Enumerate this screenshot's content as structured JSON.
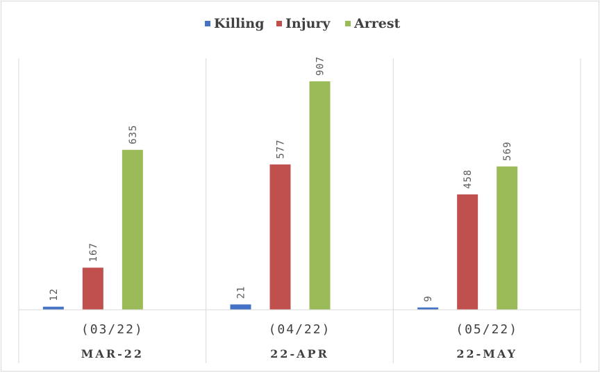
{
  "chart_data": {
    "type": "bar",
    "categories": [
      {
        "top": "(03/22)",
        "bottom": "MAR-22"
      },
      {
        "top": "(04/22)",
        "bottom": "22-APR"
      },
      {
        "top": "(05/22)",
        "bottom": "22-MAY"
      }
    ],
    "series": [
      {
        "name": "Killing",
        "color": "#4472c4",
        "values": [
          12,
          21,
          9
        ]
      },
      {
        "name": "Injury",
        "color": "#c0504d",
        "values": [
          167,
          577,
          458
        ]
      },
      {
        "name": "Arrest",
        "color": "#9bbb59",
        "values": [
          635,
          907,
          569
        ]
      }
    ],
    "ylim": [
      0,
      1000
    ],
    "legend": "top-center",
    "grid": false,
    "colors": {
      "axis": "#d9d9d9",
      "separator": "#d9d9d9",
      "text": "#404040",
      "label": "#595959"
    }
  }
}
